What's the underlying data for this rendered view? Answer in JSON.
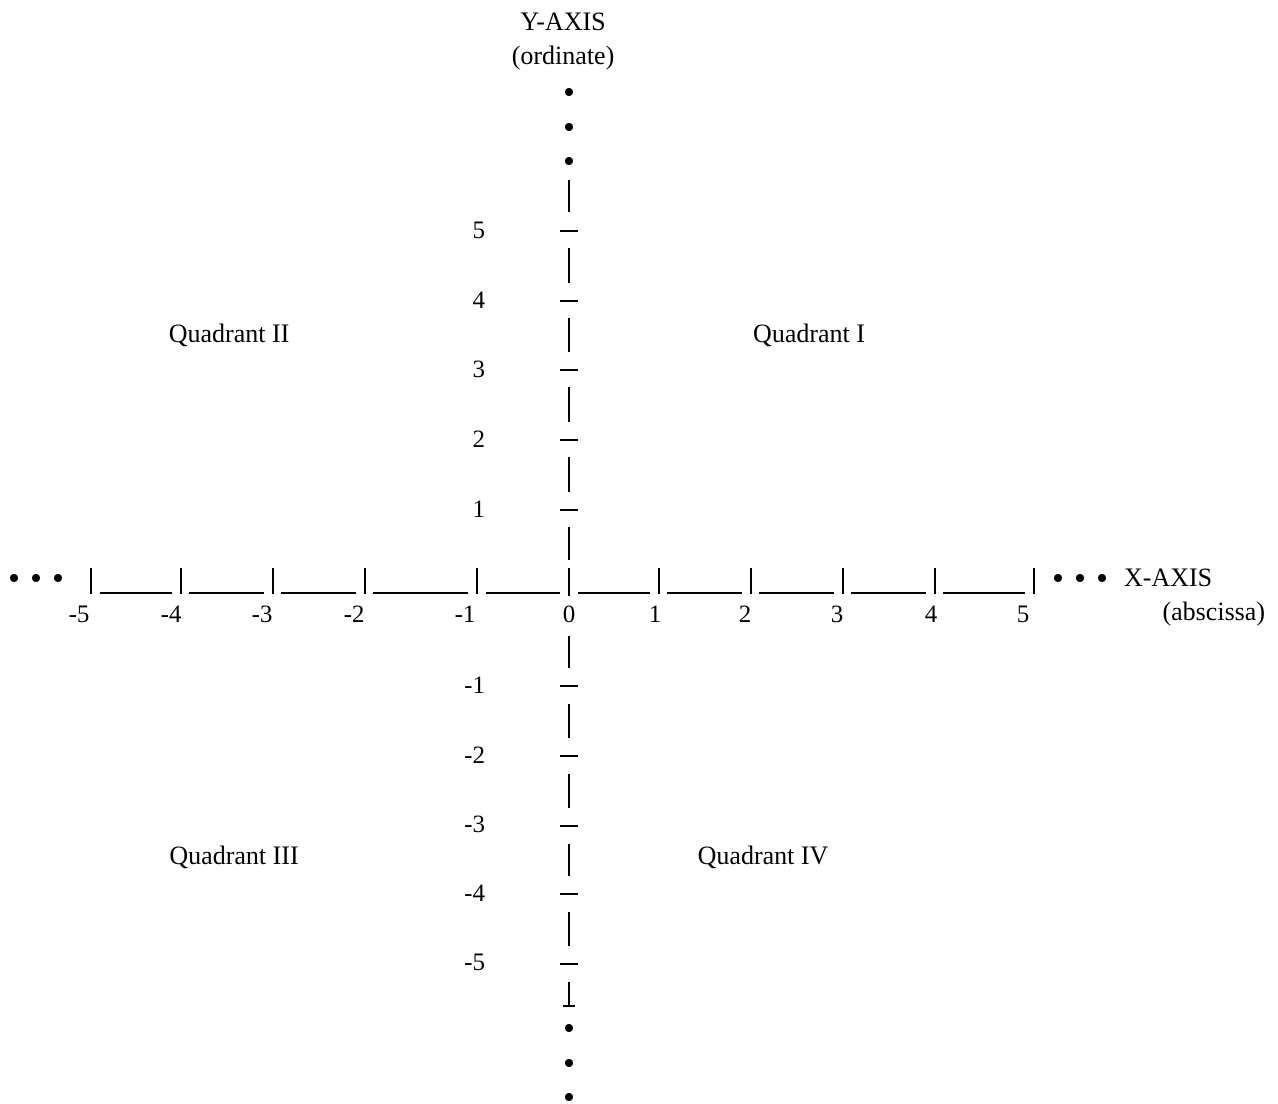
{
  "y_axis": {
    "title": "Y-AXIS",
    "subtitle": "(ordinate)",
    "positive_labels": [
      "1",
      "2",
      "3",
      "4",
      "5"
    ],
    "negative_labels": [
      "-1",
      "-2",
      "-3",
      "-4",
      "-5"
    ]
  },
  "x_axis": {
    "title": "X-AXIS",
    "subtitle": "(abscissa)",
    "labels": [
      "-5",
      "-4",
      "-3",
      "-2",
      "-1",
      "0",
      "1",
      "2",
      "3",
      "4",
      "5"
    ]
  },
  "quadrants": {
    "q1": "Quadrant I",
    "q2": "Quadrant II",
    "q3": "Quadrant III",
    "q4": "Quadrant IV"
  },
  "colors": {
    "ink": "#000000",
    "background": "#ffffff"
  }
}
